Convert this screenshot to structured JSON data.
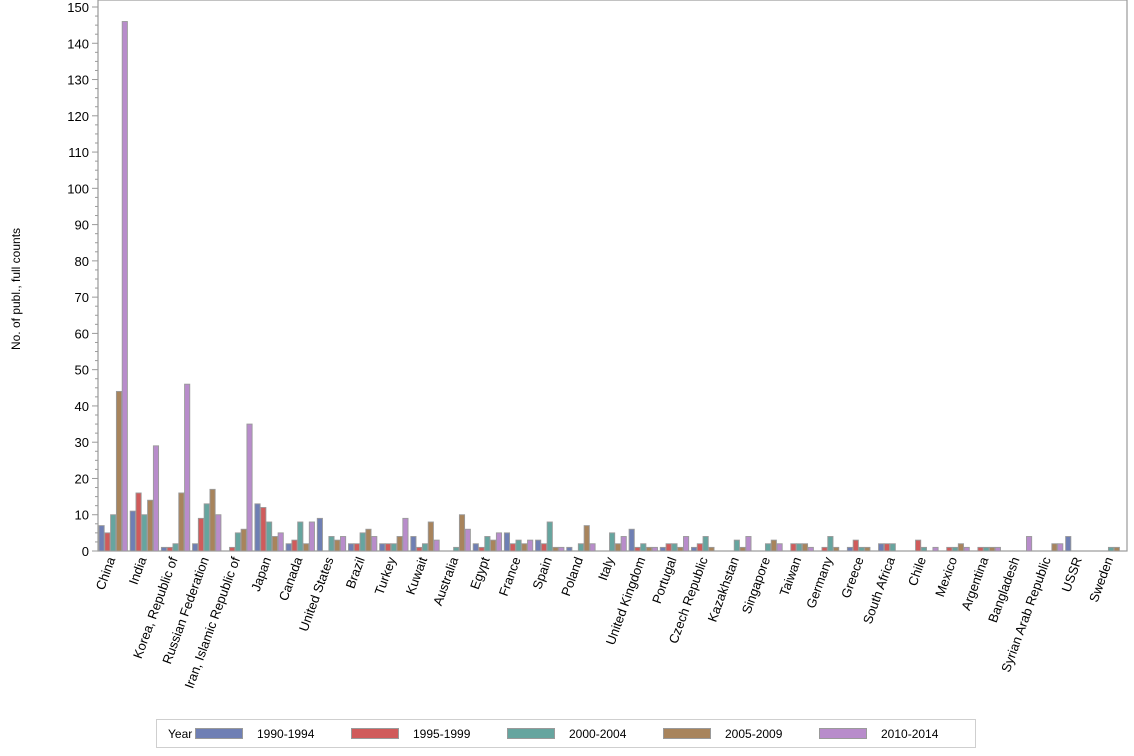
{
  "chart_data": {
    "type": "bar",
    "title": "",
    "xlabel": "",
    "ylabel": "No. of publ., full counts",
    "ylim": [
      0,
      150
    ],
    "yticks": [
      0,
      10,
      20,
      30,
      40,
      50,
      60,
      70,
      80,
      90,
      100,
      110,
      120,
      130,
      140,
      150
    ],
    "grid": false,
    "legend_position": "bottom",
    "legend_title": "Year",
    "categories": [
      "China",
      "India",
      "Korea, Republic of",
      "Russian Federation",
      "Iran, Islamic Republic of",
      "Japan",
      "Canada",
      "United States",
      "Brazil",
      "Turkey",
      "Kuwait",
      "Australia",
      "Egypt",
      "France",
      "Spain",
      "Poland",
      "Italy",
      "United Kingdom",
      "Portugal",
      "Czech Republic",
      "Kazakhstan",
      "Singapore",
      "Taiwan",
      "Germany",
      "Greece",
      "South Africa",
      "Chile",
      "Mexico",
      "Argentina",
      "Bangladesh",
      "Syrian Arab Republic",
      "USSR",
      "Sweden"
    ],
    "series": [
      {
        "name": "1990-1994",
        "color": "#6f7fb4",
        "values": [
          7,
          11,
          1,
          2,
          0,
          13,
          2,
          9,
          2,
          2,
          4,
          0,
          2,
          5,
          3,
          1,
          0,
          6,
          1,
          1,
          0,
          0,
          0,
          0,
          1,
          2,
          0,
          0,
          0,
          0,
          0,
          4,
          0
        ]
      },
      {
        "name": "1995-1999",
        "color": "#d05b5b",
        "values": [
          5,
          16,
          1,
          9,
          1,
          12,
          3,
          0,
          2,
          2,
          1,
          0,
          1,
          2,
          2,
          0,
          0,
          1,
          2,
          2,
          0,
          0,
          2,
          1,
          3,
          2,
          3,
          1,
          1,
          0,
          0,
          0,
          0
        ]
      },
      {
        "name": "2000-2004",
        "color": "#66a59f",
        "values": [
          10,
          10,
          2,
          13,
          5,
          8,
          8,
          4,
          5,
          2,
          2,
          1,
          4,
          3,
          8,
          2,
          5,
          2,
          2,
          4,
          3,
          2,
          2,
          4,
          1,
          2,
          1,
          1,
          1,
          0,
          0,
          0,
          1
        ]
      },
      {
        "name": "2005-2009",
        "color": "#a8845c",
        "values": [
          44,
          14,
          16,
          17,
          6,
          4,
          2,
          3,
          6,
          4,
          8,
          10,
          3,
          2,
          1,
          7,
          2,
          1,
          1,
          1,
          1,
          3,
          2,
          1,
          1,
          0,
          0,
          2,
          1,
          0,
          2,
          0,
          1
        ]
      },
      {
        "name": "2010-2014",
        "color": "#b88ccb",
        "values": [
          146,
          29,
          46,
          10,
          35,
          5,
          8,
          4,
          4,
          9,
          3,
          6,
          5,
          3,
          1,
          2,
          4,
          1,
          4,
          0,
          4,
          2,
          1,
          0,
          0,
          0,
          1,
          1,
          1,
          4,
          2,
          0,
          0
        ]
      }
    ]
  },
  "legend": {
    "title": "Year",
    "items": [
      {
        "label": "1990-1994",
        "color": "#6f7fb4"
      },
      {
        "label": "1995-1999",
        "color": "#d05b5b"
      },
      {
        "label": "2000-2004",
        "color": "#66a59f"
      },
      {
        "label": "2005-2009",
        "color": "#a8845c"
      },
      {
        "label": "2010-2014",
        "color": "#b88ccb"
      }
    ]
  }
}
